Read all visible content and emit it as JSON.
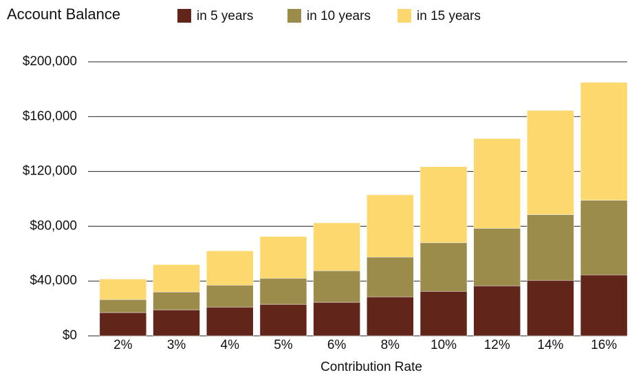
{
  "chart_data": {
    "type": "stacked-bar",
    "title": "Account Balance",
    "x_label": "Contribution Rate",
    "categories": [
      "2%",
      "3%",
      "4%",
      "5%",
      "6%",
      "8%",
      "10%",
      "12%",
      "14%",
      "16%"
    ],
    "series": [
      {
        "name": "in 5 years",
        "color": "#62251a",
        "values": [
          17000,
          19000,
          21000,
          23000,
          24500,
          28500,
          32500,
          36500,
          40500,
          44500
        ]
      },
      {
        "name": "in 10 years",
        "color": "#9b8c4c",
        "values": [
          9500,
          13000,
          16000,
          19000,
          23000,
          29000,
          35500,
          42000,
          48000,
          54500
        ]
      },
      {
        "name": "in 15 years",
        "color": "#fcd86f",
        "values": [
          15000,
          20000,
          25000,
          30500,
          35000,
          45500,
          55500,
          65500,
          76000,
          86000
        ]
      }
    ],
    "ylim": [
      0,
      200000
    ],
    "yticks": [
      {
        "value": 0,
        "label": "$0"
      },
      {
        "value": 40000,
        "label": "$40,000"
      },
      {
        "value": 80000,
        "label": "$80,000"
      },
      {
        "value": 120000,
        "label": "$120,000"
      },
      {
        "value": 160000,
        "label": "$160,000"
      },
      {
        "value": 200000,
        "label": "$200,000"
      }
    ],
    "grid": true,
    "legend": "top"
  }
}
